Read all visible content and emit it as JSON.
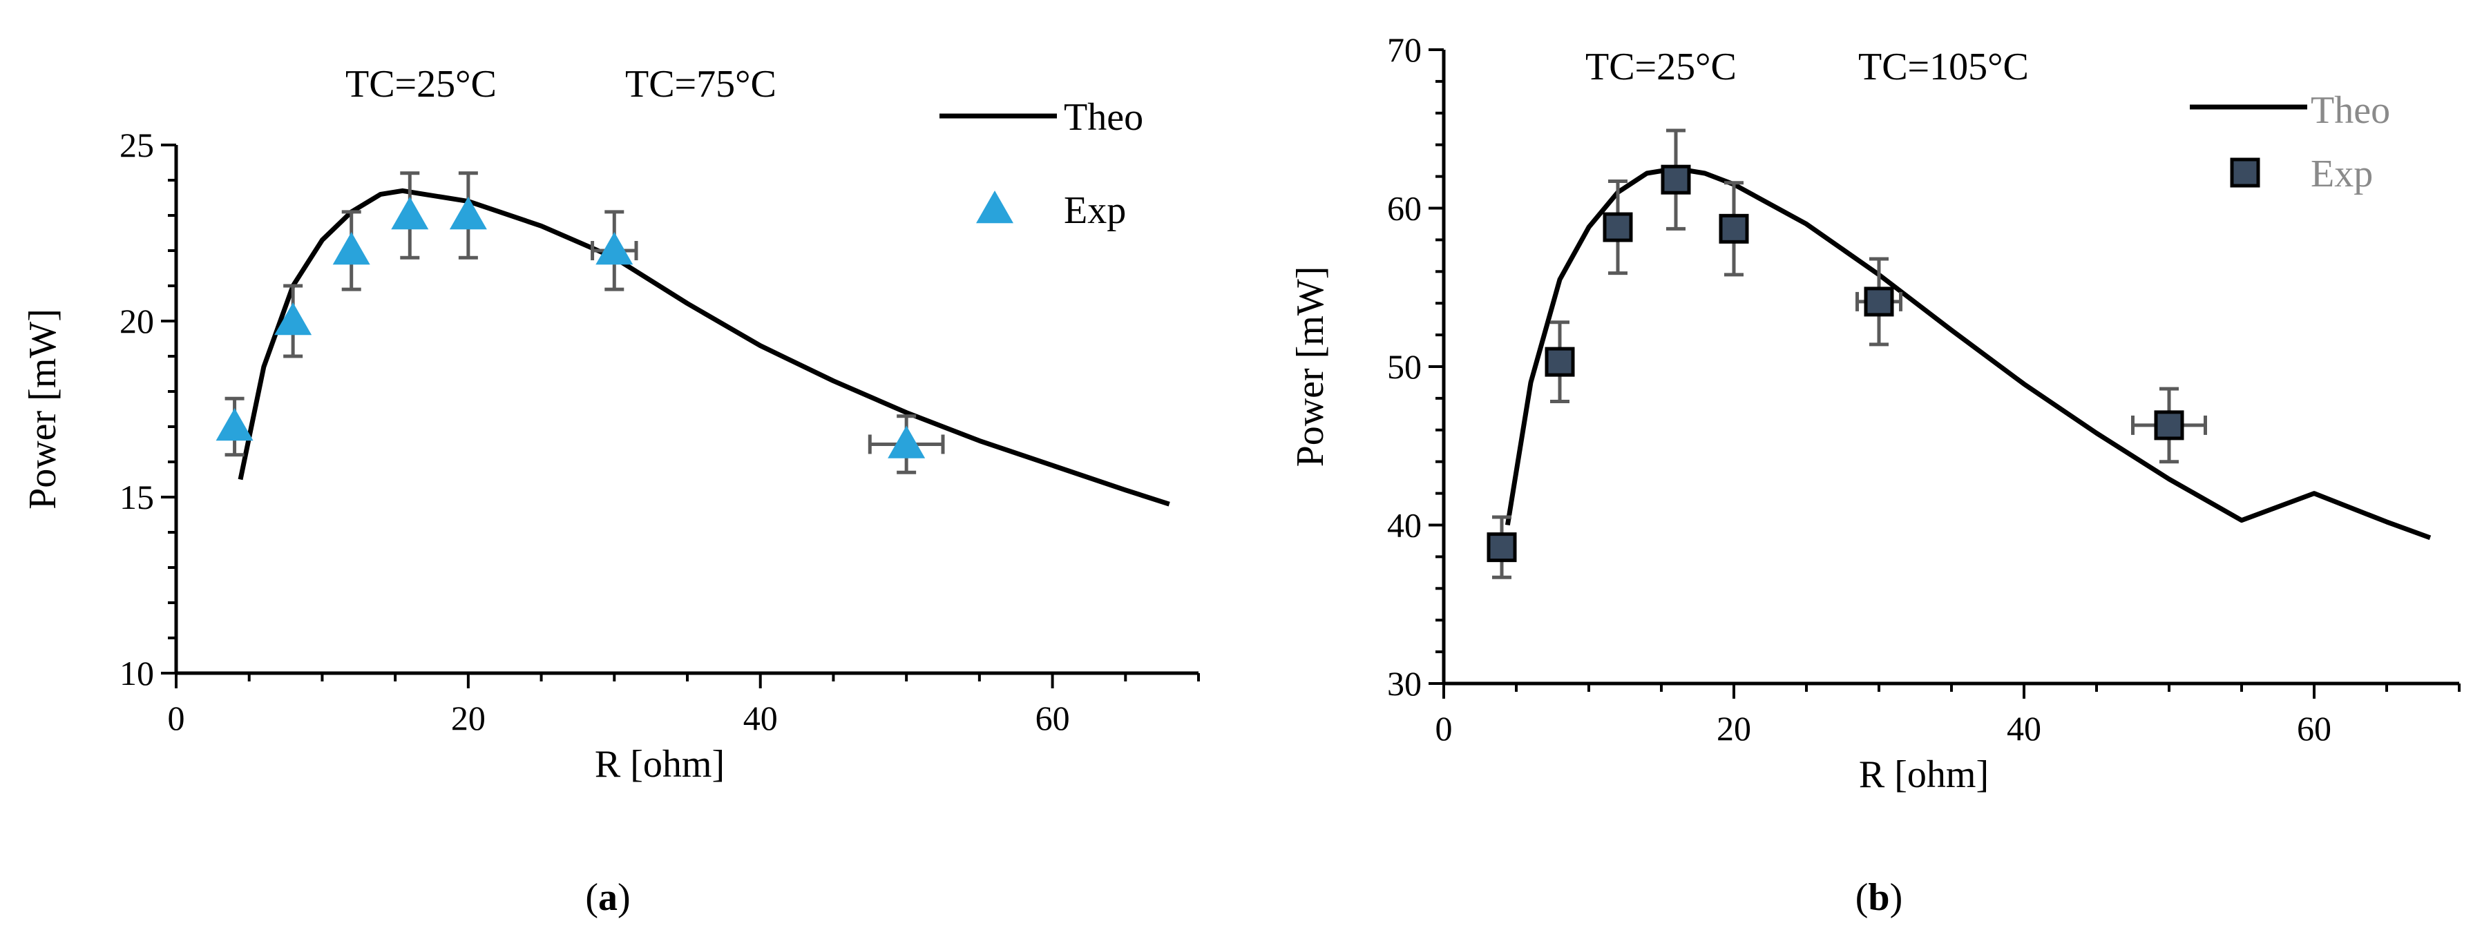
{
  "chart_data": [
    {
      "type": "line+scatter",
      "panel_label": "a",
      "caption_open": "(",
      "caption_close": ")",
      "conditions": [
        "TC=25°C",
        "TC=75°C"
      ],
      "xlabel": "R [ohm]",
      "ylabel": "Power [mW]",
      "xlim": [
        0,
        70
      ],
      "ylim": [
        10,
        25
      ],
      "xticks": [
        0,
        20,
        40,
        60
      ],
      "yticks": [
        10,
        15,
        20,
        25
      ],
      "series": [
        {
          "name": "Theo",
          "kind": "line",
          "color": "#000000",
          "x": [
            4.4,
            6,
            8,
            10,
            12,
            14,
            15.5,
            17,
            20,
            25,
            30,
            35,
            40,
            45,
            50,
            55,
            60,
            65,
            68
          ],
          "y": [
            15.5,
            18.7,
            21.0,
            22.3,
            23.1,
            23.6,
            23.7,
            23.6,
            23.4,
            22.7,
            21.8,
            20.5,
            19.3,
            18.3,
            17.4,
            16.6,
            15.9,
            15.2,
            14.8
          ]
        },
        {
          "name": "Exp",
          "kind": "scatter",
          "marker": "triangle",
          "color": "#29a3db",
          "x": [
            4,
            8,
            12,
            16,
            20,
            30,
            50
          ],
          "y": [
            17.0,
            20.0,
            22.0,
            23.0,
            23.0,
            22.0,
            16.5
          ],
          "y_err": [
            0.8,
            1.0,
            1.1,
            1.2,
            1.2,
            1.1,
            0.8
          ],
          "x_err": [
            0,
            0,
            0,
            0,
            0,
            1.5,
            2.5
          ]
        }
      ]
    },
    {
      "type": "line+scatter",
      "panel_label": "b",
      "caption_open": "(",
      "caption_close": ")",
      "conditions": [
        "TC=25°C",
        "TC=105°C"
      ],
      "xlabel": "R [ohm]",
      "ylabel": "Power [mW]",
      "xlim": [
        0,
        70
      ],
      "ylim": [
        30,
        70
      ],
      "xticks": [
        0,
        20,
        40,
        60
      ],
      "yticks": [
        30,
        40,
        50,
        60,
        70
      ],
      "series": [
        {
          "name": "Theo",
          "kind": "line",
          "color": "#000000",
          "legend_text_color": "#8a8a8a",
          "x": [
            4.4,
            6,
            8,
            10,
            12,
            14,
            16,
            18,
            20,
            25,
            30,
            35,
            40,
            45,
            50,
            55,
            60,
            65,
            68
          ],
          "y": [
            40.0,
            49.0,
            55.5,
            58.8,
            61.0,
            62.2,
            62.5,
            62.2,
            61.5,
            59.0,
            55.8,
            52.3,
            48.9,
            45.8,
            42.9,
            40.3,
            42.0,
            40.2,
            39.2
          ]
        },
        {
          "name": "Exp",
          "kind": "scatter",
          "marker": "square",
          "color": "#3a4b60",
          "legend_text_color": "#8a8a8a",
          "x": [
            4,
            8,
            12,
            16,
            20,
            30,
            50
          ],
          "y": [
            38.6,
            50.3,
            58.8,
            61.8,
            58.7,
            54.1,
            46.3
          ],
          "y_err": [
            1.9,
            2.5,
            2.9,
            3.1,
            2.9,
            2.7,
            2.3
          ],
          "x_err": [
            0,
            0,
            0,
            0,
            0,
            1.5,
            2.5
          ]
        }
      ]
    }
  ]
}
